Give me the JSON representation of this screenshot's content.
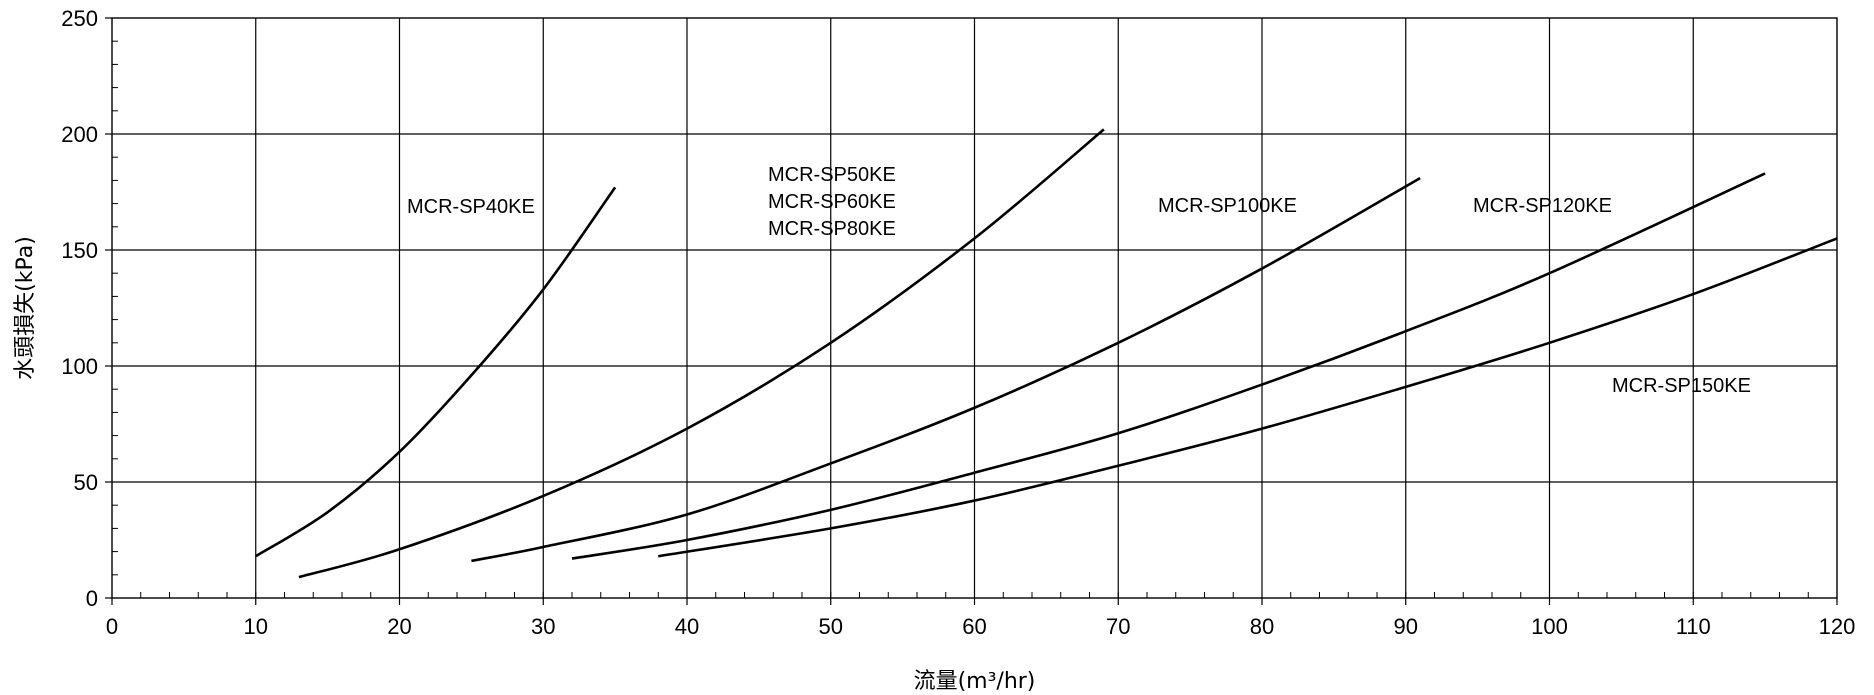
{
  "chart_data": {
    "type": "line",
    "title": "",
    "xlabel": "流量(m³/hr)",
    "ylabel": "水頭損失(kPa)",
    "xlim": [
      0,
      120
    ],
    "ylim": [
      0,
      250
    ],
    "x_ticks": [
      "0",
      "10",
      "20",
      "30",
      "40",
      "50",
      "60",
      "70",
      "80",
      "90",
      "100",
      "110",
      "120"
    ],
    "y_ticks": [
      "0",
      "50",
      "100",
      "150",
      "200",
      "250"
    ],
    "grid": true,
    "legend": "none",
    "line_color": "#000000",
    "series": [
      {
        "name": "MCR-SP40KE",
        "labels": [
          "MCR-SP40KE"
        ],
        "x": [
          10,
          15,
          20,
          25,
          30,
          35
        ],
        "y": [
          18,
          37,
          63,
          96,
          133,
          177
        ]
      },
      {
        "name": "MCR-SP50KE / MCR-SP60KE / MCR-SP80KE",
        "labels": [
          "MCR-SP50KE",
          "MCR-SP60KE",
          "MCR-SP80KE"
        ],
        "x": [
          13,
          20,
          30,
          40,
          50,
          60,
          69
        ],
        "y": [
          9,
          21,
          44,
          73,
          110,
          155,
          202
        ]
      },
      {
        "name": "MCR-SP100KE",
        "labels": [
          "MCR-SP100KE"
        ],
        "x": [
          25,
          30,
          40,
          50,
          60,
          70,
          80,
          91
        ],
        "y": [
          16,
          22,
          36,
          58,
          82,
          110,
          142,
          181
        ]
      },
      {
        "name": "MCR-SP120KE",
        "labels": [
          "MCR-SP120KE"
        ],
        "x": [
          32,
          40,
          50,
          60,
          70,
          80,
          90,
          100,
          115
        ],
        "y": [
          17,
          25,
          38,
          54,
          71,
          92,
          115,
          140,
          183
        ]
      },
      {
        "name": "MCR-SP150KE",
        "labels": [
          "MCR-SP150KE"
        ],
        "x": [
          38,
          50,
          60,
          70,
          80,
          90,
          100,
          110,
          120
        ],
        "y": [
          18,
          30,
          42,
          57,
          73,
          91,
          110,
          131,
          155
        ]
      }
    ]
  }
}
